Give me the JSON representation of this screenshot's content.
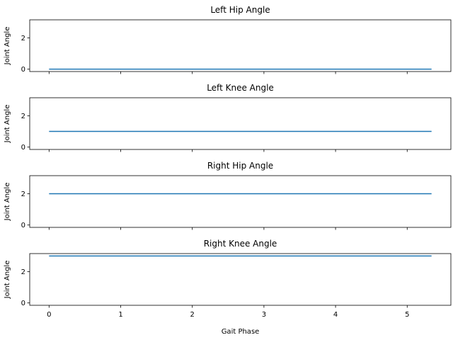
{
  "chart_data": {
    "type": "line",
    "xlabel": "Gait Phase",
    "ylabel": "Joint Angle",
    "xlim": [
      -0.27,
      5.61
    ],
    "ylim": [
      -0.15,
      3.15
    ],
    "xticks": [
      0,
      1,
      2,
      3,
      4,
      5
    ],
    "yticks": [
      0,
      2
    ],
    "sharex": true,
    "grid": false,
    "line_color": "#1f77b4",
    "panels": [
      {
        "title": "Left Hip Angle",
        "x": [
          0,
          5.34
        ],
        "y": [
          0,
          0
        ]
      },
      {
        "title": "Left Knee Angle",
        "x": [
          0,
          5.34
        ],
        "y": [
          1,
          1
        ]
      },
      {
        "title": "Right Hip Angle",
        "x": [
          0,
          5.34
        ],
        "y": [
          2,
          2
        ]
      },
      {
        "title": "Right Knee Angle",
        "x": [
          0,
          5.34
        ],
        "y": [
          3,
          3
        ]
      }
    ]
  }
}
